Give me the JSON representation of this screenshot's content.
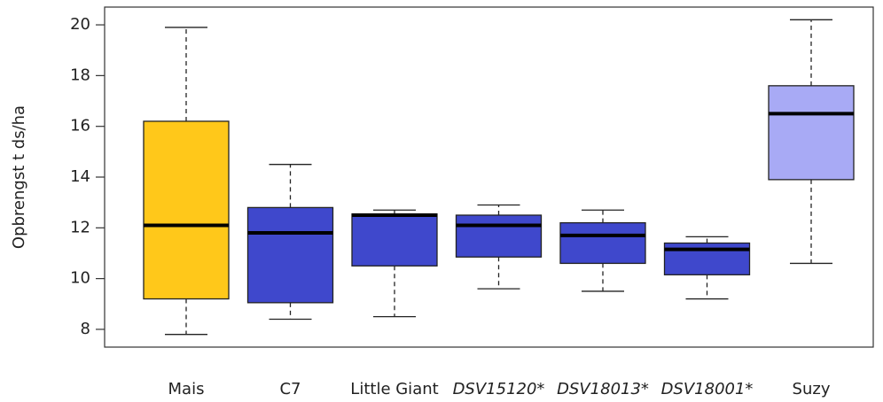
{
  "chart_data": {
    "type": "boxplot",
    "y_label": "Opbrengst t ds/ha",
    "categories": [
      "Mais",
      "C7",
      "Little Giant",
      "DSV15120*",
      "DSV18013*",
      "DSV18001*",
      "Suzy"
    ],
    "colors": [
      "#ffc81a",
      "#3f48cc",
      "#3f48cc",
      "#3f48cc",
      "#3f48cc",
      "#3f48cc",
      "#a8aaf5"
    ],
    "whisker_low": [
      7.8,
      8.4,
      8.5,
      9.6,
      9.5,
      9.2,
      10.6
    ],
    "q1": [
      9.2,
      9.05,
      10.5,
      10.85,
      10.6,
      10.15,
      13.9
    ],
    "median": [
      12.1,
      11.8,
      12.5,
      12.1,
      11.7,
      11.15,
      16.5
    ],
    "q3": [
      16.2,
      12.8,
      12.55,
      12.5,
      12.2,
      11.4,
      17.6
    ],
    "whisker_high": [
      19.9,
      14.5,
      12.7,
      12.9,
      12.7,
      11.65,
      20.2
    ],
    "ylim": [
      7.3,
      20.7
    ],
    "yticks": [
      8,
      10,
      12,
      14,
      16,
      18,
      20
    ]
  }
}
